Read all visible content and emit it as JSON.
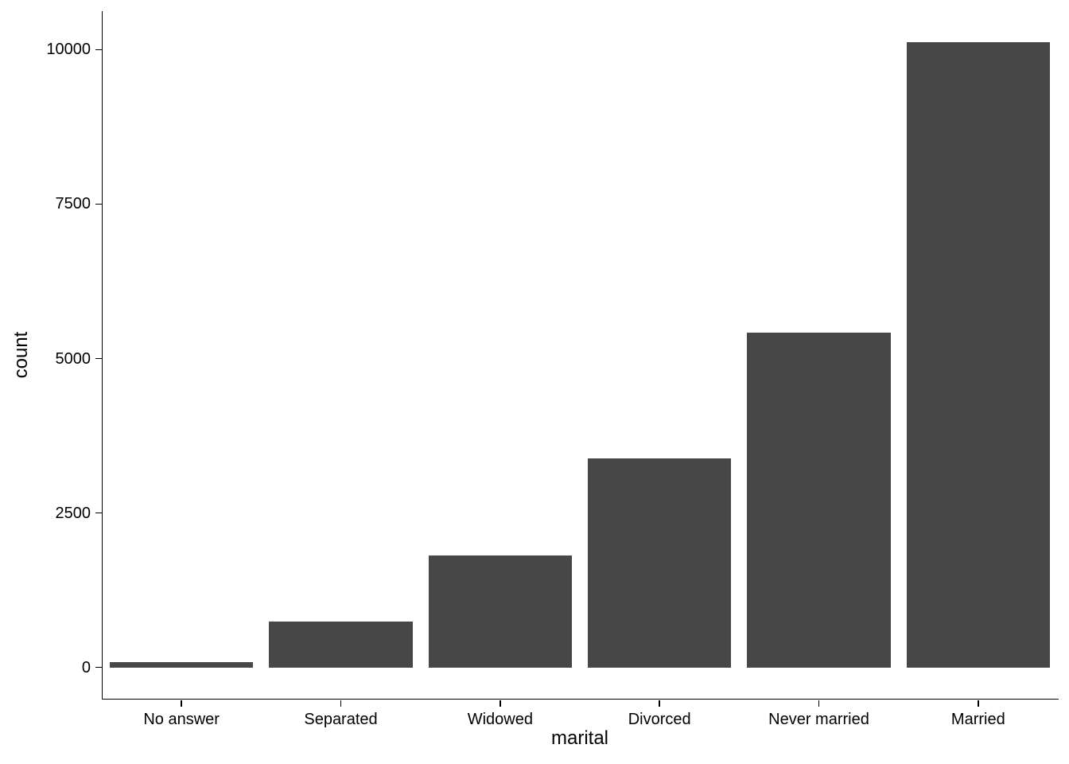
{
  "chart_data": {
    "type": "bar",
    "title": "",
    "xlabel": "marital",
    "ylabel": "count",
    "categories": [
      "No answer",
      "Separated",
      "Widowed",
      "Divorced",
      "Never married",
      "Married"
    ],
    "values": [
      93,
      743,
      1807,
      3383,
      5416,
      10117
    ],
    "yticks": [
      0,
      2500,
      5000,
      7500,
      10000
    ],
    "ylim": [
      0,
      10600
    ],
    "grid": false,
    "legend": false,
    "bar_color": "#474747",
    "axis_color": "#000000",
    "background_color": "#FFFFFF"
  }
}
